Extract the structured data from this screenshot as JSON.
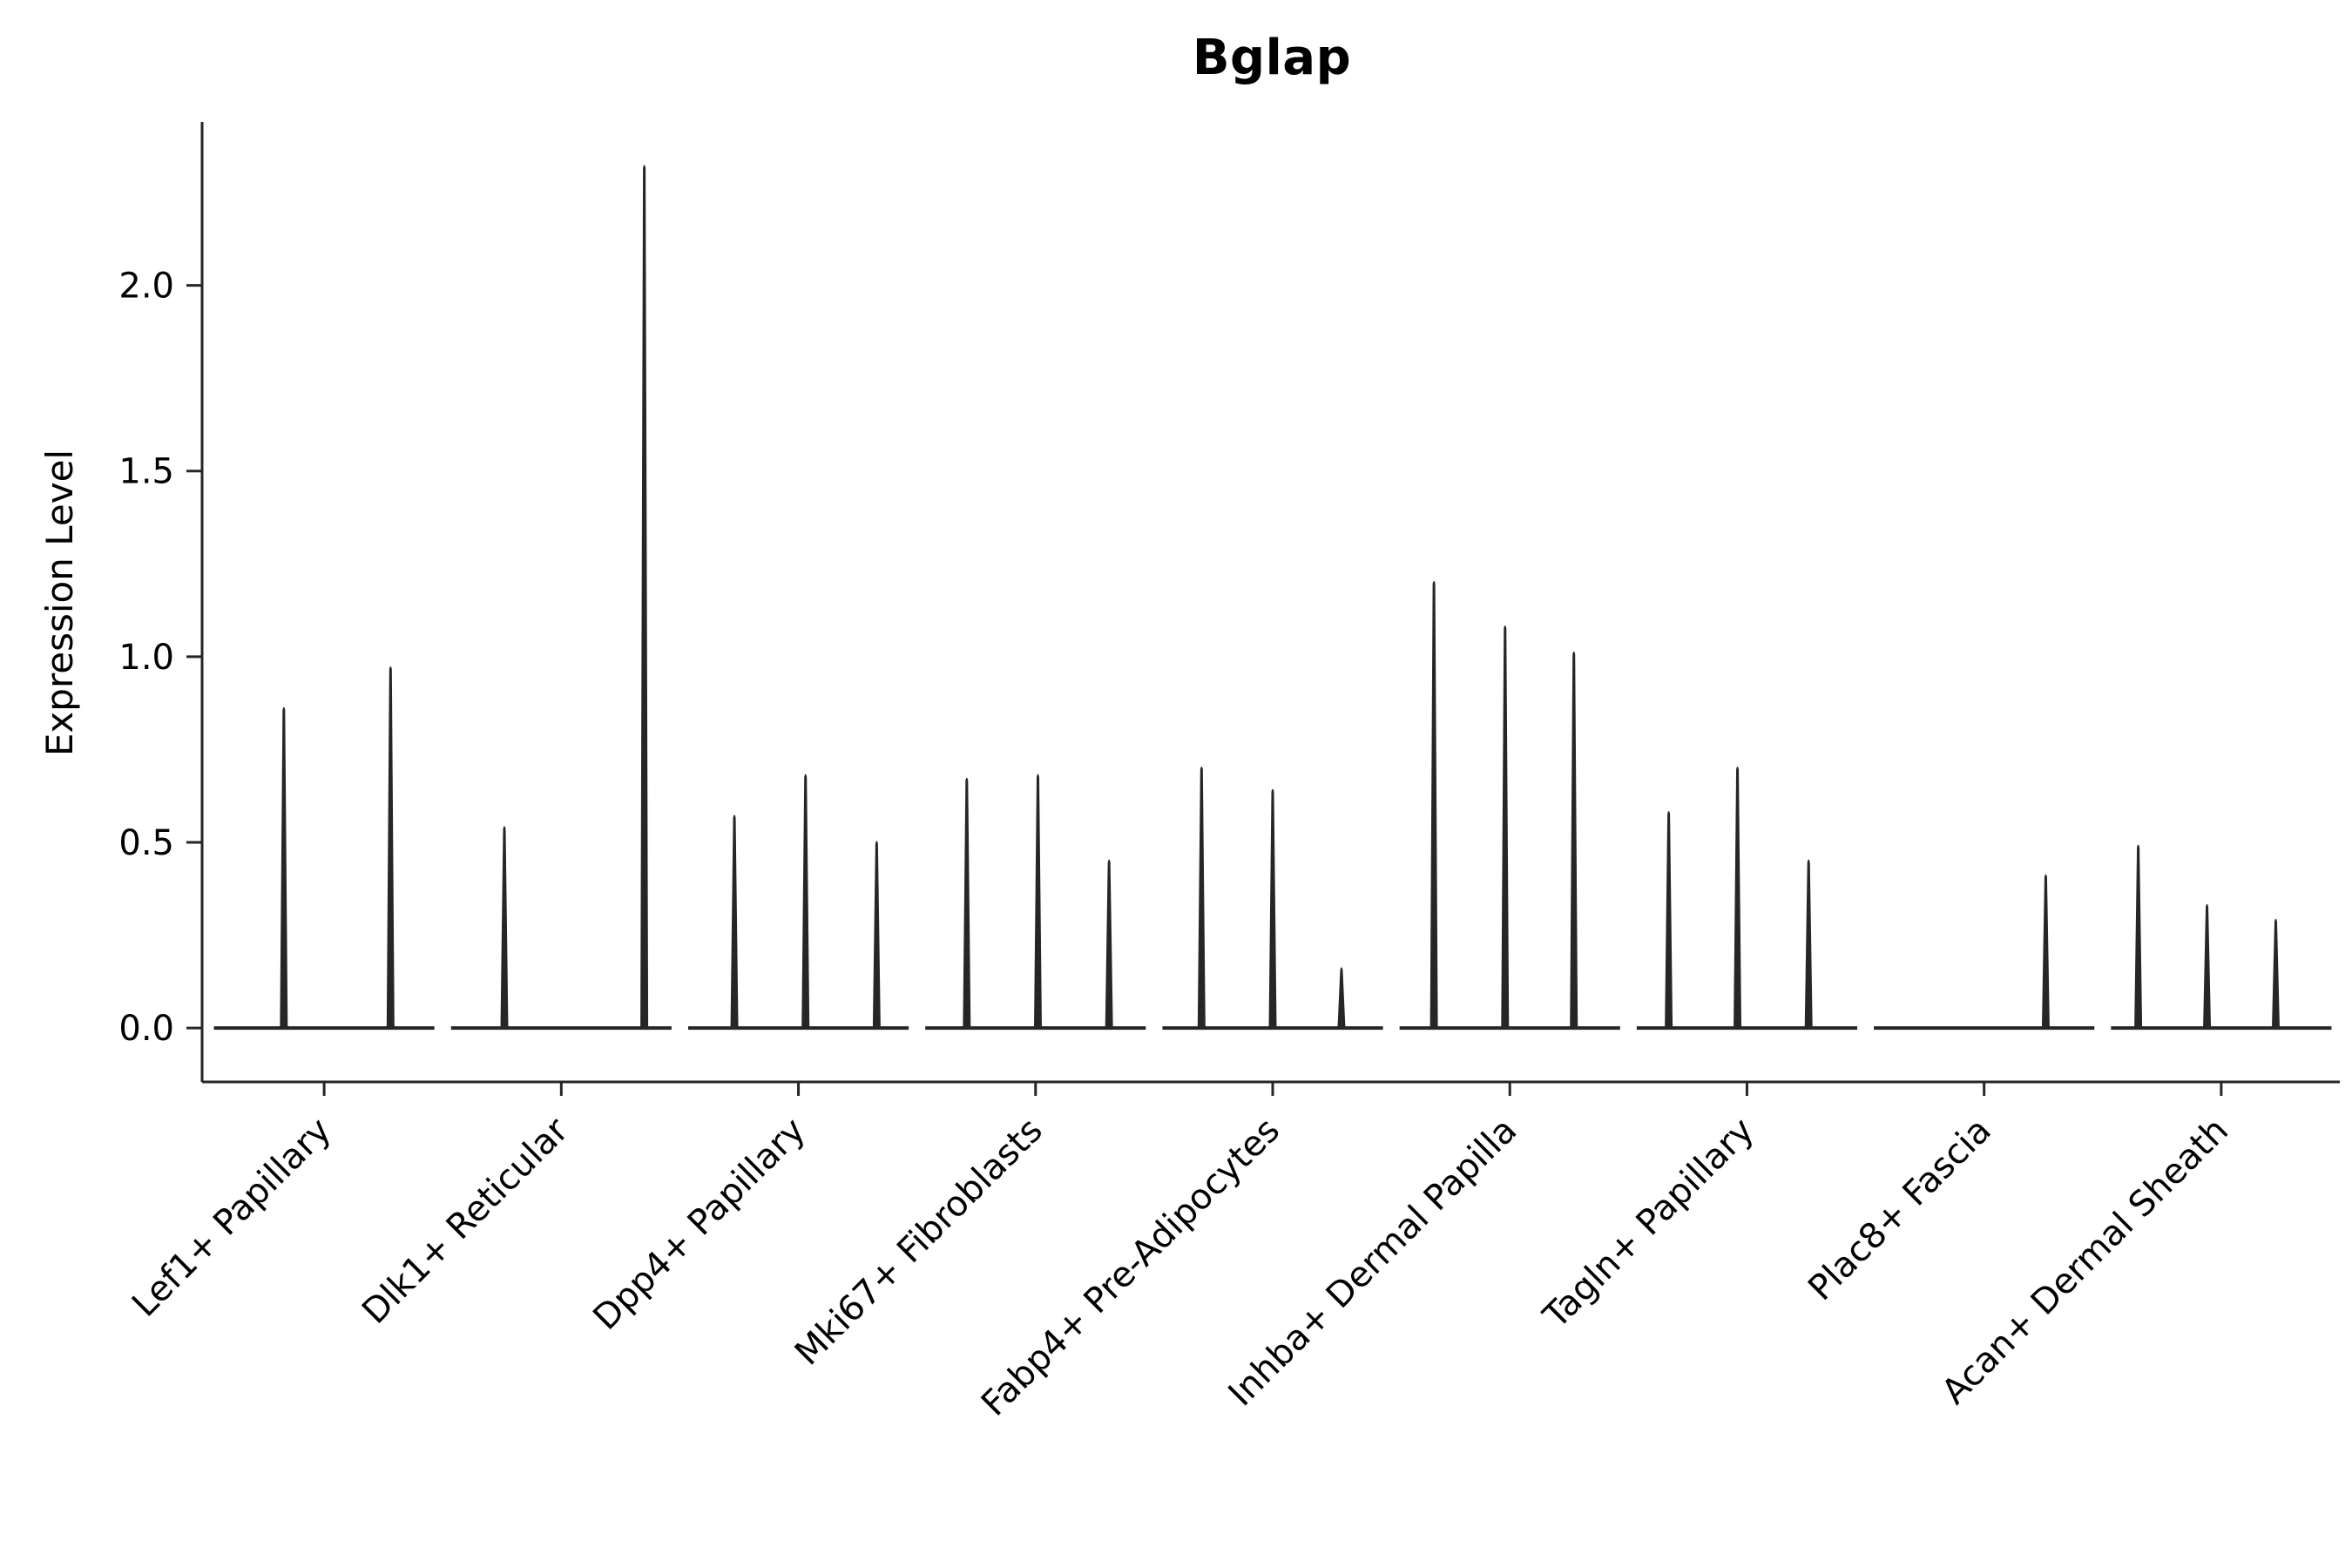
{
  "chart_data": {
    "type": "violin",
    "title": "Bglap",
    "ylabel": "Expression Level",
    "xlabel": "",
    "ylim": [
      -0.145,
      2.44
    ],
    "yticks": [
      {
        "value": 0.0,
        "label": "0.0"
      },
      {
        "value": 0.5,
        "label": "0.5"
      },
      {
        "value": 1.0,
        "label": "1.0"
      },
      {
        "value": 1.5,
        "label": "1.5"
      },
      {
        "value": 2.0,
        "label": "2.0"
      }
    ],
    "grid": false,
    "legend": "none",
    "background": "#ffffff",
    "line_color": "#262626",
    "text_color": "#000000",
    "groups": [
      {
        "category": "Lef1+ Papillary",
        "violins": [
          {
            "x": 0.33,
            "max": 0.87
          },
          {
            "x": 0.78,
            "max": 0.98
          }
        ]
      },
      {
        "category": "Dlk1+ Reticular",
        "violins": [
          {
            "x": 0.26,
            "max": 0.55
          },
          {
            "x": 0.85,
            "max": 2.33
          }
        ]
      },
      {
        "category": "Dpp4+ Papillary",
        "violins": [
          {
            "x": 0.23,
            "max": 0.58
          },
          {
            "x": 0.53,
            "max": 0.69
          },
          {
            "x": 0.83,
            "max": 0.51
          }
        ]
      },
      {
        "category": "Mki67+ Fibroblasts",
        "violins": [
          {
            "x": 0.21,
            "max": 0.68
          },
          {
            "x": 0.51,
            "max": 0.69
          },
          {
            "x": 0.81,
            "max": 0.46
          }
        ]
      },
      {
        "category": "Fabp4+ Pre-Adipocytes",
        "violins": [
          {
            "x": 0.2,
            "max": 0.71
          },
          {
            "x": 0.5,
            "max": 0.65
          },
          {
            "x": 0.79,
            "max": 0.17
          }
        ]
      },
      {
        "category": "Inhba+ Dermal Papilla",
        "violins": [
          {
            "x": 0.18,
            "max": 1.21
          },
          {
            "x": 0.48,
            "max": 1.09
          },
          {
            "x": 0.77,
            "max": 1.02
          }
        ]
      },
      {
        "category": "Tagln+ Papillary",
        "violins": [
          {
            "x": 0.17,
            "max": 0.59
          },
          {
            "x": 0.46,
            "max": 0.71
          },
          {
            "x": 0.76,
            "max": 0.46
          }
        ]
      },
      {
        "category": "Plac8+ Fascia",
        "violins": [
          {
            "x": 0.76,
            "max": 0.42
          }
        ]
      },
      {
        "category": "Acan+ Dermal Sheath",
        "violins": [
          {
            "x": 0.15,
            "max": 0.5
          },
          {
            "x": 0.44,
            "max": 0.34
          },
          {
            "x": 0.73,
            "max": 0.3
          }
        ]
      }
    ]
  }
}
